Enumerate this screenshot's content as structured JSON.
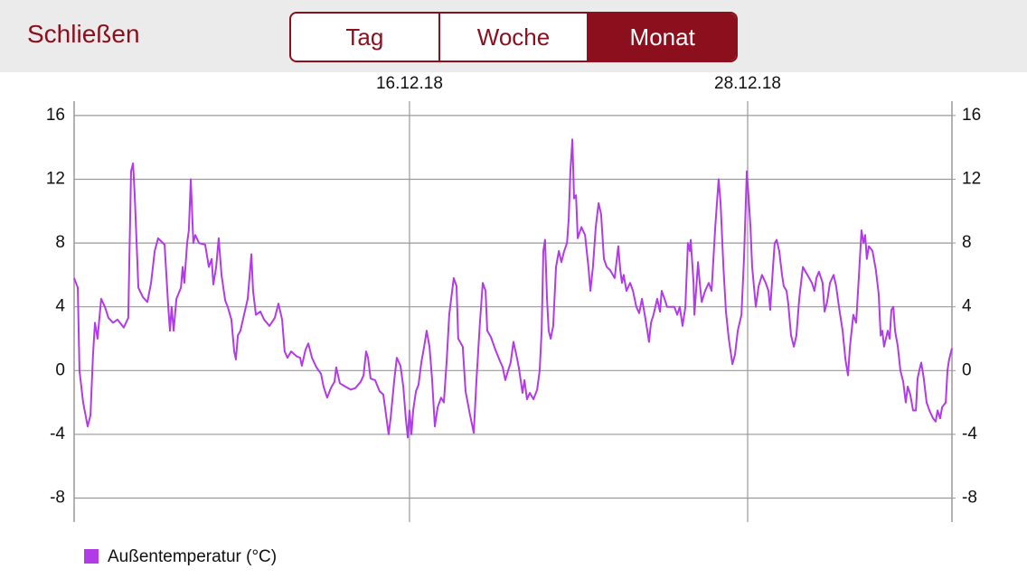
{
  "header": {
    "close": "Schließen",
    "tabs": [
      "Tag",
      "Woche",
      "Monat"
    ],
    "selected_tab": 2
  },
  "chart_data": {
    "type": "line",
    "x": [
      0,
      0.13,
      0.19,
      0.32,
      0.48,
      0.58,
      0.67,
      0.74,
      0.83,
      0.96,
      1.09,
      1.22,
      1.38,
      1.54,
      1.76,
      1.92,
      2.02,
      2.09,
      2.15,
      2.28,
      2.44,
      2.6,
      2.73,
      2.86,
      2.98,
      3.21,
      3.34,
      3.4,
      3.46,
      3.53,
      3.63,
      3.79,
      3.85,
      3.91,
      4.01,
      4.07,
      4.14,
      4.23,
      4.3,
      4.43,
      4.65,
      4.78,
      4.88,
      4.94,
      5.04,
      5.13,
      5.23,
      5.36,
      5.45,
      5.58,
      5.68,
      5.74,
      5.81,
      5.9,
      6.03,
      6.16,
      6.29,
      6.35,
      6.45,
      6.61,
      6.74,
      6.93,
      7.12,
      7.25,
      7.38,
      7.47,
      7.57,
      7.7,
      7.89,
      8.02,
      8.08,
      8.21,
      8.31,
      8.44,
      8.6,
      8.76,
      8.85,
      8.98,
      9.11,
      9.24,
      9.3,
      9.43,
      9.62,
      9.82,
      9.98,
      10.17,
      10.27,
      10.36,
      10.43,
      10.52,
      10.68,
      10.84,
      10.97,
      11.07,
      11.16,
      11.23,
      11.36,
      11.45,
      11.58,
      11.68,
      11.77,
      11.84,
      11.9,
      11.97,
      12.03,
      12.13,
      12.22,
      12.32,
      12.42,
      12.51,
      12.61,
      12.7,
      12.8,
      12.9,
      13.02,
      13.12,
      13.22,
      13.31,
      13.47,
      13.57,
      13.63,
      13.79,
      13.89,
      14.05,
      14.18,
      14.28,
      14.4,
      14.5,
      14.6,
      14.66,
      14.79,
      14.95,
      15.11,
      15.21,
      15.3,
      15.4,
      15.49,
      15.59,
      15.69,
      15.78,
      15.91,
      15.98,
      16.07,
      16.17,
      16.3,
      16.43,
      16.52,
      16.59,
      16.65,
      16.71,
      16.78,
      16.84,
      16.91,
      17,
      17.1,
      17.2,
      17.29,
      17.39,
      17.49,
      17.55,
      17.61,
      17.68,
      17.74,
      17.81,
      17.87,
      18,
      18.13,
      18.25,
      18.32,
      18.41,
      18.51,
      18.61,
      18.7,
      18.8,
      18.9,
      19.02,
      19.18,
      19.31,
      19.38,
      19.44,
      19.5,
      19.6,
      19.73,
      19.83,
      19.95,
      20.05,
      20.15,
      20.24,
      20.34,
      20.4,
      20.47,
      20.56,
      20.69,
      20.79,
      20.85,
      20.95,
      21.04,
      21.17,
      21.3,
      21.4,
      21.49,
      21.59,
      21.69,
      21.78,
      21.85,
      21.88,
      21.98,
      22.01,
      22.07,
      22.14,
      22.2,
      22.27,
      22.39,
      22.52,
      22.62,
      22.75,
      22.87,
      22.94,
      23.04,
      23.13,
      23.23,
      23.36,
      23.45,
      23.55,
      23.68,
      23.77,
      23.87,
      23.93,
      24,
      24.06,
      24.19,
      24.29,
      24.41,
      24.54,
      24.64,
      24.7,
      24.8,
      24.86,
      24.93,
      25.02,
      25.12,
      25.18,
      25.28,
      25.34,
      25.44,
      25.54,
      25.63,
      25.73,
      25.86,
      26.02,
      26.18,
      26.27,
      26.34,
      26.43,
      26.56,
      26.63,
      26.72,
      26.82,
      26.95,
      27.04,
      27.14,
      27.27,
      27.37,
      27.46,
      27.53,
      27.65,
      27.75,
      27.85,
      27.94,
      28.01,
      28.07,
      28.13,
      28.2,
      28.33,
      28.45,
      28.55,
      28.62,
      28.68,
      28.74,
      28.87,
      28.94,
      29,
      29.07,
      29.13,
      29.23,
      29.32,
      29.42,
      29.51,
      29.58,
      29.67,
      29.77,
      29.87,
      29.93,
      29.99,
      30.06,
      30.15,
      30.25,
      30.35,
      30.48,
      30.57,
      30.64,
      30.73,
      30.8,
      30.93,
      30.99,
      31.05,
      31.15
    ],
    "series": [
      {
        "name": "Außentemperatur (°C)",
        "color": "#b23be8",
        "values": [
          5.8,
          5.2,
          0,
          -2,
          -3.5,
          -2.8,
          1,
          3,
          2,
          4.5,
          4,
          3.3,
          3,
          3.2,
          2.7,
          3.3,
          12.5,
          13,
          11,
          5.2,
          4.6,
          4.3,
          5.5,
          7.5,
          8.3,
          7.9,
          4,
          2.5,
          4,
          2.5,
          4.5,
          5.2,
          6.5,
          5.5,
          8,
          8.8,
          12,
          8,
          8.5,
          8,
          7.9,
          6.5,
          7,
          5.4,
          6.5,
          8.3,
          6,
          4.4,
          4,
          3.2,
          1.2,
          0.7,
          2.2,
          2.5,
          3.5,
          4.5,
          7.3,
          5,
          3.5,
          3.7,
          3.2,
          2.8,
          3.3,
          4.2,
          3.2,
          1.2,
          0.8,
          1.2,
          0.9,
          0.8,
          0.3,
          1.3,
          1.7,
          0.8,
          0.2,
          -0.2,
          -1,
          -1.7,
          -1.1,
          -0.7,
          0.2,
          -0.8,
          -1,
          -1.2,
          -1.1,
          -0.7,
          -0.3,
          1.2,
          0.8,
          -0.5,
          -0.6,
          -1.3,
          -1.5,
          -2.8,
          -4,
          -3,
          -0.6,
          0.8,
          0.3,
          -1,
          -3,
          -4.2,
          -2.5,
          -4,
          -2.5,
          -1.3,
          -0.9,
          0.5,
          1.5,
          2.5,
          1.5,
          -0.5,
          -3.5,
          -2.3,
          -1.7,
          -2,
          0.6,
          3.5,
          5.8,
          5.3,
          2,
          1.5,
          -1.3,
          -2.8,
          -3.9,
          -0.5,
          3,
          5.5,
          5,
          2.5,
          2.1,
          1.3,
          0.6,
          0.2,
          -0.6,
          0,
          0.5,
          1.8,
          1,
          0.2,
          -1.4,
          -0.6,
          -1.8,
          -1.4,
          -1.8,
          -1.2,
          0,
          2.5,
          7.5,
          8.2,
          4.5,
          2.5,
          2,
          2.8,
          6.5,
          7.5,
          6.8,
          7.5,
          8,
          9.5,
          12.5,
          14.5,
          10.8,
          11,
          8.3,
          9,
          8.5,
          6.5,
          5,
          6.5,
          9,
          10.5,
          9.8,
          7,
          6.5,
          6.3,
          5.8,
          7.8,
          6.3,
          5.5,
          6,
          5,
          5.5,
          5,
          4,
          3.6,
          4.5,
          3.6,
          2.5,
          1.8,
          3,
          3.5,
          4.5,
          3.7,
          5,
          4.5,
          4,
          4,
          4,
          3.5,
          4,
          2.8,
          4,
          8,
          7.5,
          8.2,
          5.5,
          3.5,
          5,
          6.8,
          5.5,
          4.3,
          5,
          5.5,
          5,
          9,
          12,
          10.5,
          6.5,
          3.7,
          2,
          0.4,
          1,
          2.5,
          3.5,
          7,
          12.5,
          11,
          9,
          6.5,
          4,
          5.3,
          6,
          5.5,
          5,
          3.8,
          6.5,
          8,
          8.2,
          7.5,
          6,
          5.3,
          5,
          4.2,
          2.2,
          1.5,
          2.2,
          4.5,
          6.5,
          6,
          5.5,
          5,
          5.8,
          6.2,
          5.5,
          3.7,
          4.3,
          5.5,
          6,
          5.3,
          4,
          2.5,
          0.7,
          -0.3,
          1.5,
          3.5,
          3,
          6,
          8.8,
          8,
          8.5,
          7,
          7.8,
          7.5,
          6.3,
          4.8,
          2.2,
          2.5,
          1.5,
          2.5,
          2,
          3.8,
          4,
          2.5,
          1.5,
          0,
          -0.7,
          -2,
          -1,
          -1.5,
          -2.5,
          -2.5,
          -0.5,
          0,
          0.5,
          -0.5,
          -2,
          -2.5,
          -3,
          -3.2,
          -2.5,
          -3,
          -2.3,
          -2,
          0,
          0.7,
          1.4
        ]
      }
    ],
    "xlim": [
      0,
      31.15
    ],
    "xticks": [
      {
        "value": 11.9,
        "label": "16.12.18"
      },
      {
        "value": 23.9,
        "label": "28.12.18"
      }
    ],
    "ylim": [
      -9.5,
      16.9
    ],
    "yticks": [
      16,
      12,
      8,
      4,
      0,
      -4,
      -8
    ],
    "y2lim": [
      -9.5,
      16.9
    ],
    "y2ticks": [
      16,
      12,
      8,
      4,
      0,
      -4,
      -8
    ],
    "grid": true,
    "legend": "bottom-left"
  }
}
